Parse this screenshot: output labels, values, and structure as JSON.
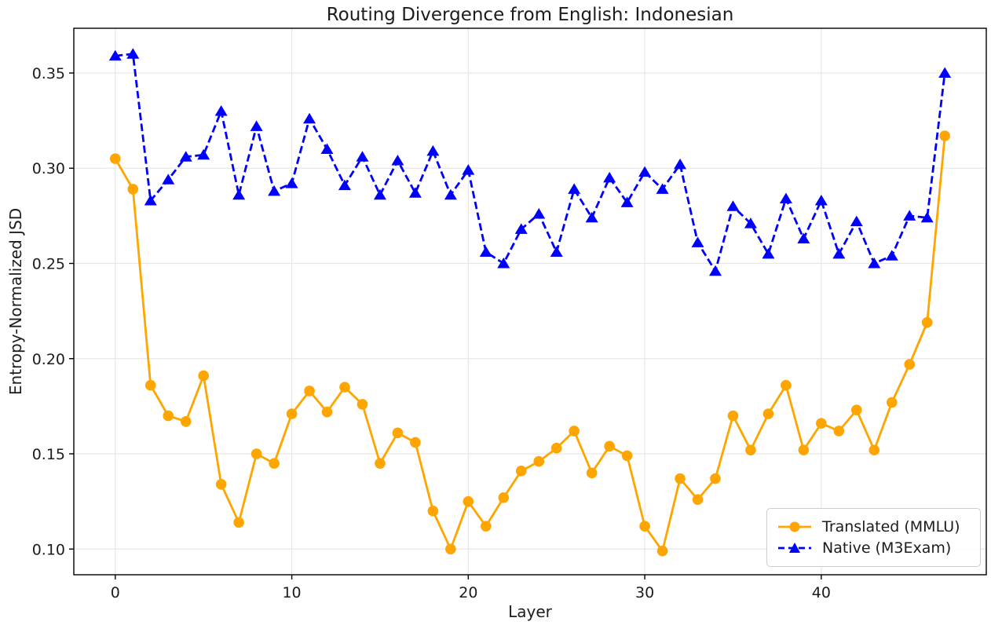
{
  "chart_data": {
    "type": "line",
    "title": "Routing Divergence from English: Indonesian",
    "xlabel": "Layer",
    "ylabel": "Entropy-Normalized JSD",
    "x": [
      0,
      1,
      2,
      3,
      4,
      5,
      6,
      7,
      8,
      9,
      10,
      11,
      12,
      13,
      14,
      15,
      16,
      17,
      18,
      19,
      20,
      21,
      22,
      23,
      24,
      25,
      26,
      27,
      28,
      29,
      30,
      31,
      32,
      33,
      34,
      35,
      36,
      37,
      38,
      39,
      40,
      41,
      42,
      43,
      44,
      45,
      46,
      47
    ],
    "series": [
      {
        "name": "Translated (MMLU)",
        "color": "#FFA500",
        "line_style": "solid",
        "marker": "circle",
        "values": [
          0.305,
          0.289,
          0.186,
          0.17,
          0.167,
          0.191,
          0.134,
          0.114,
          0.15,
          0.145,
          0.171,
          0.183,
          0.172,
          0.185,
          0.176,
          0.145,
          0.161,
          0.156,
          0.12,
          0.1,
          0.125,
          0.112,
          0.127,
          0.141,
          0.146,
          0.153,
          0.162,
          0.14,
          0.154,
          0.149,
          0.112,
          0.099,
          0.137,
          0.126,
          0.137,
          0.17,
          0.152,
          0.171,
          0.186,
          0.152,
          0.166,
          0.162,
          0.173,
          0.152,
          0.177,
          0.197,
          0.219,
          0.317
        ]
      },
      {
        "name": "Native (M3Exam)",
        "color": "#0000FF",
        "line_style": "dashed",
        "marker": "triangle",
        "values": [
          0.359,
          0.36,
          0.283,
          0.294,
          0.306,
          0.307,
          0.33,
          0.286,
          0.322,
          0.288,
          0.292,
          0.326,
          0.31,
          0.291,
          0.306,
          0.286,
          0.304,
          0.287,
          0.309,
          0.286,
          0.299,
          0.256,
          0.25,
          0.268,
          0.276,
          0.256,
          0.289,
          0.274,
          0.295,
          0.282,
          0.298,
          0.289,
          0.302,
          0.261,
          0.246,
          0.28,
          0.271,
          0.255,
          0.284,
          0.263,
          0.283,
          0.255,
          0.272,
          0.25,
          0.254,
          0.275,
          0.274,
          0.35
        ]
      }
    ],
    "xticks": [
      0,
      10,
      20,
      30,
      40
    ],
    "xtick_labels": [
      "0",
      "10",
      "20",
      "30",
      "40"
    ],
    "yticks": [
      0.1,
      0.15,
      0.2,
      0.25,
      0.3,
      0.35
    ],
    "ytick_labels": [
      "0.10",
      "0.15",
      "0.20",
      "0.25",
      "0.30",
      "0.35"
    ],
    "xlim": [
      -2.35,
      49.35
    ],
    "ylim": [
      0.0865,
      0.3735
    ],
    "grid": true,
    "legend_position": "lower right",
    "grid_color": "#e7e7e7",
    "axis_color": "#000000",
    "text_color": "#1c1c1c"
  }
}
